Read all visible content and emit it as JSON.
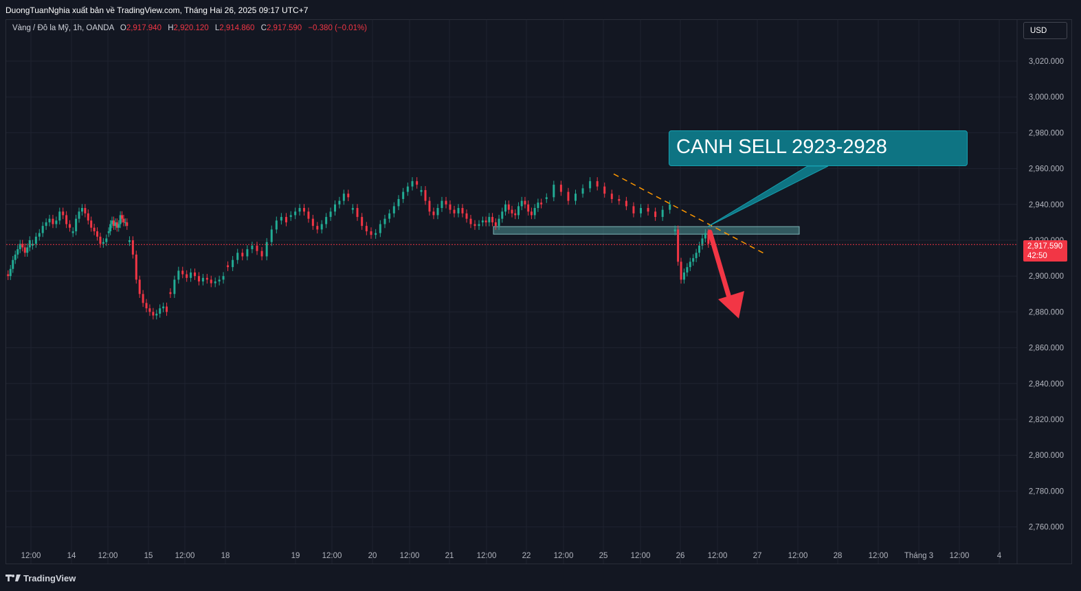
{
  "header": {
    "publisher_line": "DuongTuanNghia xuất bản về TradingView.com, Tháng Hai 26, 2025 09:17 UTC+7"
  },
  "legend": {
    "symbol": "Vàng / Đô la Mỹ, 1h, OANDA",
    "open_label": "O",
    "open": "2,917.940",
    "high_label": "H",
    "high": "2,920.120",
    "low_label": "L",
    "low": "2,914.860",
    "close_label": "C",
    "close": "2,917.590",
    "change": "−0.380 (−0.01%)"
  },
  "currency_button": "USD",
  "price_tag": {
    "price": "2,917.590",
    "countdown": "42:50"
  },
  "annotation": {
    "text": "CANH SELL 2923-2928"
  },
  "footer": {
    "brand": "TradingView"
  },
  "colors": {
    "background": "#131722",
    "grid": "#1f2330",
    "up": "#22ab94",
    "down": "#f23645",
    "zone_fill": "#4c8f92",
    "trendline": "#ff9800",
    "callout": "#0e7483",
    "arrow": "#f23645"
  },
  "chart_data": {
    "type": "candlestick",
    "timeframe": "1h",
    "y_ticks": [
      "3,020.000",
      "3,000.000",
      "2,980.000",
      "2,960.000",
      "2,940.000",
      "2,920.000",
      "2,900.000",
      "2,880.000",
      "2,860.000",
      "2,840.000",
      "2,820.000",
      "2,800.000",
      "2,780.000",
      "2,760.000"
    ],
    "ylim": [
      2753,
      3033
    ],
    "x_ticks": [
      "12:00",
      "14",
      "12:00",
      "15",
      "12:00",
      "18",
      "19",
      "12:00",
      "20",
      "12:00",
      "21",
      "12:00",
      "22",
      "12:00",
      "25",
      "12:00",
      "26",
      "12:00",
      "27",
      "12:00",
      "28",
      "12:00",
      "Tháng 3",
      "12:00",
      "4"
    ],
    "current_price": 2917.59,
    "sell_zone": [
      2923,
      2928
    ],
    "trendline": {
      "from_day": "25",
      "to_day": "27",
      "from_price": 2957,
      "to_price": 2912
    },
    "series": [
      {
        "x": "13 00:00",
        "values": [
          2900,
          2904,
          2909,
          2912,
          2915,
          2918,
          2916,
          2913,
          2916,
          2920
        ]
      },
      {
        "x": "13 12:00",
        "values": [
          2918,
          2922,
          2924,
          2928,
          2930,
          2932,
          2929,
          2931,
          2936,
          2934,
          2929,
          2927
        ]
      },
      {
        "x": "14 00:00",
        "values": [
          2925,
          2932,
          2936,
          2938,
          2935,
          2931,
          2927,
          2925,
          2922,
          2918,
          2919,
          2921
        ]
      },
      {
        "x": "14 12:00",
        "values": [
          2925,
          2929,
          2931,
          2928,
          2930,
          2927,
          2929,
          2934,
          2932,
          2930,
          2930,
          2928
        ]
      },
      {
        "x": "14 18:00",
        "values": [
          2920,
          2912,
          2898,
          2890,
          2885,
          2882,
          2880,
          2878,
          2879,
          2882,
          2883,
          2880
        ]
      },
      {
        "x": "17 00:00",
        "values": [
          2890,
          2898,
          2903,
          2901,
          2899,
          2902,
          2900,
          2897,
          2899,
          2898,
          2896,
          2897,
          2898,
          2900
        ]
      },
      {
        "x": "18 00:00",
        "values": [
          2905,
          2909,
          2913,
          2911,
          2915,
          2917,
          2914,
          2911,
          2919,
          2926,
          2931,
          2933,
          2930
        ]
      },
      {
        "x": "19 00:00",
        "values": [
          2934,
          2936,
          2938,
          2936,
          2932,
          2928,
          2926,
          2929,
          2933,
          2936,
          2940,
          2942,
          2946,
          2944
        ]
      },
      {
        "x": "20 00:00",
        "values": [
          2938,
          2933,
          2928,
          2925,
          2923,
          2924,
          2929,
          2932,
          2935,
          2939,
          2943,
          2947,
          2950,
          2953,
          2951
        ]
      },
      {
        "x": "21 00:00",
        "values": [
          2948,
          2942,
          2936,
          2934,
          2938,
          2942,
          2940,
          2937,
          2935,
          2938,
          2935,
          2932,
          2929,
          2928,
          2929
        ]
      },
      {
        "x": "22 00:00",
        "values": [
          2931,
          2930,
          2933,
          2930,
          2928,
          2932,
          2936,
          2940,
          2937,
          2935,
          2934,
          2939,
          2942,
          2940,
          2936,
          2934,
          2938,
          2941,
          2940
        ]
      },
      {
        "x": "25 00:00",
        "values": [
          2944,
          2951,
          2947,
          2942,
          2946,
          2949,
          2953,
          2950,
          2946,
          2943,
          2942,
          2939,
          2935,
          2938,
          2936,
          2933,
          2937,
          2940
        ]
      },
      {
        "x": "25 20:00",
        "values": [
          2926,
          2908,
          2898,
          2902,
          2905,
          2908,
          2910,
          2913,
          2917,
          2921,
          2924,
          2918
        ]
      }
    ]
  }
}
